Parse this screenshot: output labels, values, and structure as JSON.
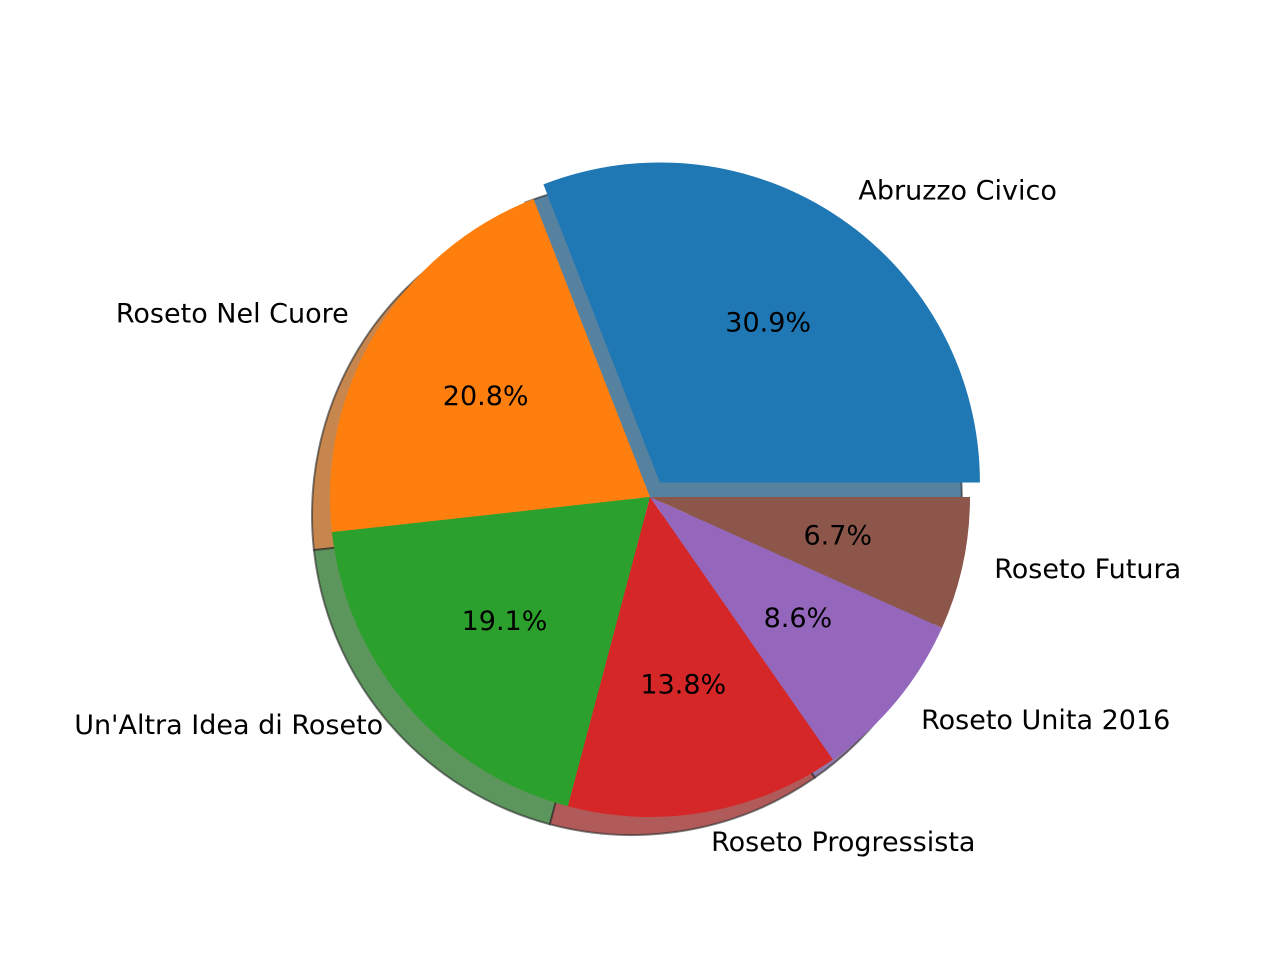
{
  "chart_data": {
    "type": "pie",
    "title": "",
    "start_angle_deg": 0,
    "direction": "counterclockwise",
    "shadow": true,
    "slices": [
      {
        "label": "Abruzzo Civico",
        "value": 30.9,
        "pct_label": "30.9%",
        "color": "#1f77b4",
        "exploded": true
      },
      {
        "label": "Roseto Nel Cuore",
        "value": 20.8,
        "pct_label": "20.8%",
        "color": "#ff7f0e",
        "exploded": false
      },
      {
        "label": "Un'Altra Idea di Roseto",
        "value": 19.1,
        "pct_label": "19.1%",
        "color": "#2ca02c",
        "exploded": false
      },
      {
        "label": "Roseto Progressista",
        "value": 13.8,
        "pct_label": "13.8%",
        "color": "#d62728",
        "exploded": false
      },
      {
        "label": "Roseto Unita 2016",
        "value": 8.6,
        "pct_label": "8.6%",
        "color": "#9467bd",
        "exploded": false
      },
      {
        "label": "Roseto Futura",
        "value": 6.7,
        "pct_label": "6.7%",
        "color": "#8c564b",
        "exploded": false
      }
    ]
  }
}
